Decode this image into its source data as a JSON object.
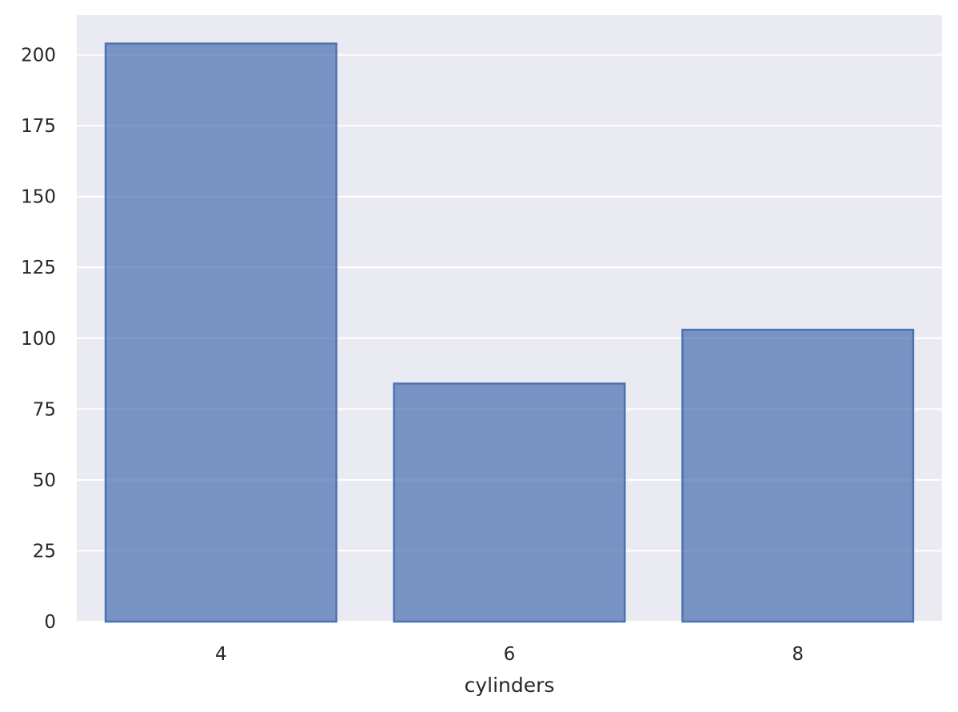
{
  "chart_data": {
    "type": "bar",
    "categories": [
      "4",
      "6",
      "8"
    ],
    "values": [
      204,
      84,
      103
    ],
    "xlabel": "cylinders",
    "ylabel": "",
    "ylim": [
      0,
      214
    ],
    "yticks": [
      0,
      25,
      50,
      75,
      100,
      125,
      150,
      175,
      200
    ],
    "grid": true,
    "colors": {
      "background": "#eaeaf2",
      "grid": "#ffffff",
      "bar_fill": "#4c72b0",
      "bar_fill_opacity": 0.72,
      "bar_edge": "#4c72b0"
    }
  }
}
